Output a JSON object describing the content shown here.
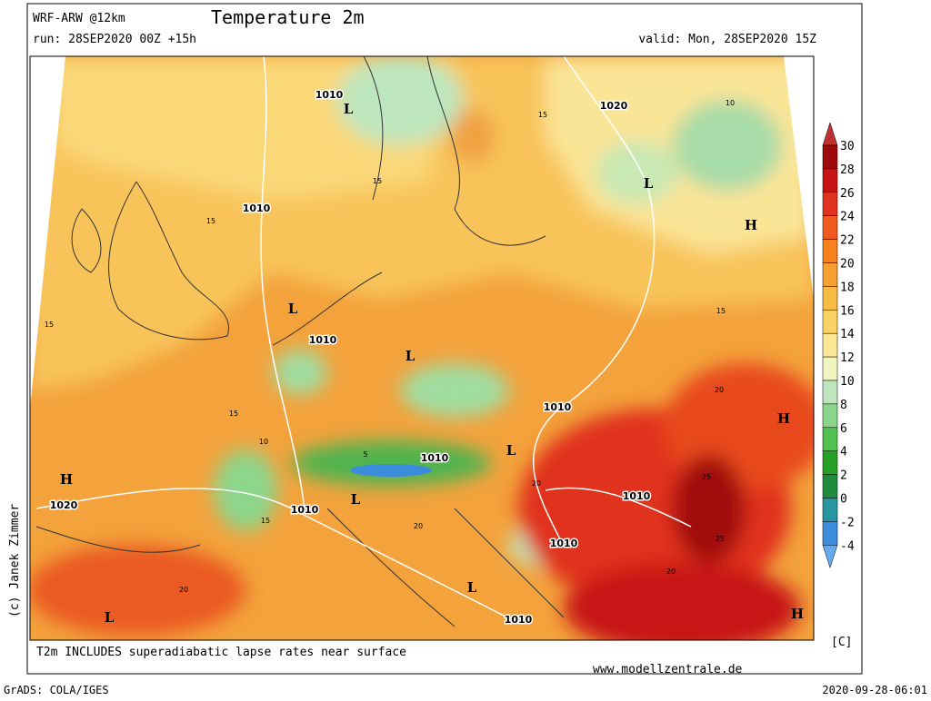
{
  "header": {
    "model": "WRF-ARW @12km",
    "title": "Temperature 2m",
    "run": "run: 28SEP2020 00Z +15h",
    "valid": "valid: Mon, 28SEP2020 15Z"
  },
  "colorbar": {
    "labels": [
      30,
      28,
      26,
      24,
      22,
      20,
      18,
      16,
      14,
      12,
      10,
      8,
      6,
      4,
      2,
      0,
      -2,
      -4
    ],
    "colors": [
      "#c03030",
      "#a00a0a",
      "#c81414",
      "#e0321e",
      "#f05a1e",
      "#f5821e",
      "#f5a032",
      "#f8bc46",
      "#fad264",
      "#fae896",
      "#f0f5c0",
      "#bee6be",
      "#8cd68c",
      "#50c050",
      "#28a028",
      "#1e8c3c",
      "#2896a0",
      "#3c8cdc",
      "#64aaf0"
    ],
    "unit": "[C]"
  },
  "map": {
    "credit": "(c) Janek Zimmer",
    "labels": [
      "1010",
      "L",
      "1020",
      "1010",
      "L",
      "H",
      "L",
      "1010",
      "L",
      "1010",
      "H",
      "1010",
      "L",
      "H",
      "1020",
      "L",
      "1010",
      "1010",
      "1010",
      "L",
      "L",
      "1010",
      "H",
      "15",
      "15",
      "15",
      "15",
      "10",
      "15",
      "20",
      "25",
      "20",
      "20",
      "15",
      "10",
      "5",
      "15",
      "20",
      "25",
      "20"
    ]
  },
  "footer": {
    "note": "T2m INCLUDES superadiabatic lapse rates near surface",
    "website": "www.modellzentrale.de",
    "software": "GrADS: COLA/IGES",
    "timestamp": "2020-09-28-06:01"
  }
}
